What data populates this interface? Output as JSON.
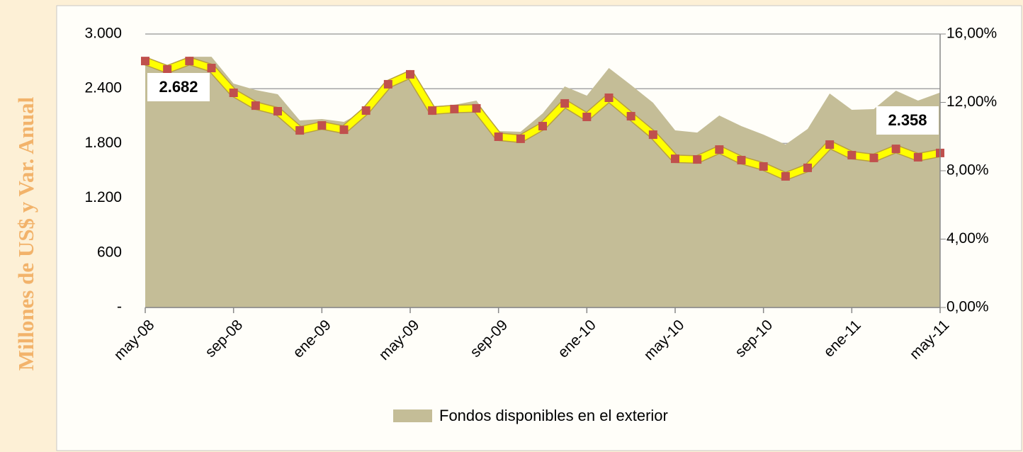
{
  "chart_data": {
    "type": "area-line",
    "ylabel": "Millones de US$ y Var. Anual",
    "categories": [
      "may-08",
      null,
      null,
      null,
      "sep-08",
      null,
      null,
      null,
      "ene-09",
      null,
      null,
      null,
      "may-09",
      null,
      null,
      null,
      "sep-09",
      null,
      null,
      null,
      "ene-10",
      null,
      null,
      null,
      "may-10",
      null,
      null,
      null,
      "sep-10",
      null,
      null,
      null,
      "ene-11",
      null,
      null,
      null,
      "may-11"
    ],
    "series": [
      {
        "name": "Fondos disponibles en el exterior",
        "type": "area",
        "color": "#c4bd97",
        "values": [
          2682,
          2620,
          2750,
          2750,
          2456,
          2386,
          2339,
          2052,
          2067,
          2036,
          2168,
          2456,
          2596,
          2207,
          2223,
          2269,
          1935,
          1927,
          2129,
          2425,
          2324,
          2627,
          2440,
          2246,
          1943,
          1919,
          2106,
          1990,
          1896,
          1788,
          1959,
          2347,
          2168,
          2176,
          2378,
          2269,
          2358
        ],
        "value_labels": [
          "2.682",
          null,
          null,
          null,
          null,
          null,
          null,
          null,
          null,
          null,
          null,
          null,
          null,
          null,
          null,
          null,
          null,
          null,
          null,
          null,
          null,
          null,
          null,
          null,
          null,
          null,
          null,
          null,
          null,
          null,
          null,
          null,
          null,
          null,
          null,
          null,
          "2.358"
        ]
      },
      {
        "type": "line",
        "axis": "y2",
        "color": "#ffff00",
        "marker_color": "#c0504d",
        "values": [
          14.42,
          13.93,
          14.42,
          14.01,
          12.56,
          11.81,
          11.48,
          10.36,
          10.65,
          10.4,
          11.52,
          13.06,
          13.64,
          11.52,
          11.61,
          11.65,
          9.99,
          9.87,
          10.61,
          11.94,
          11.15,
          12.27,
          11.19,
          10.11,
          8.7,
          8.66,
          9.24,
          8.62,
          8.25,
          7.67,
          8.17,
          9.53,
          8.91,
          8.75,
          9.28,
          8.79,
          9.04
        ]
      }
    ],
    "ylim": [
      0,
      3000
    ],
    "yticks": [
      {
        "value": 0,
        "label": "-"
      },
      600,
      {
        "value": 1200,
        "label": "1.200"
      },
      {
        "value": 1800,
        "label": "1.800"
      },
      {
        "value": 2400,
        "label": "2.400"
      },
      {
        "value": 3000,
        "label": "3.000"
      }
    ],
    "y2lim": [
      0,
      16
    ],
    "y2ticks": [
      {
        "value": 0,
        "label": "0,00%"
      },
      {
        "value": 4,
        "label": "4,00%"
      },
      {
        "value": 8,
        "label": "8,00%"
      },
      {
        "value": 12,
        "label": "12,00%"
      },
      {
        "value": 16,
        "label": "16,00%"
      }
    ],
    "grid": true,
    "legend": "bottom"
  }
}
